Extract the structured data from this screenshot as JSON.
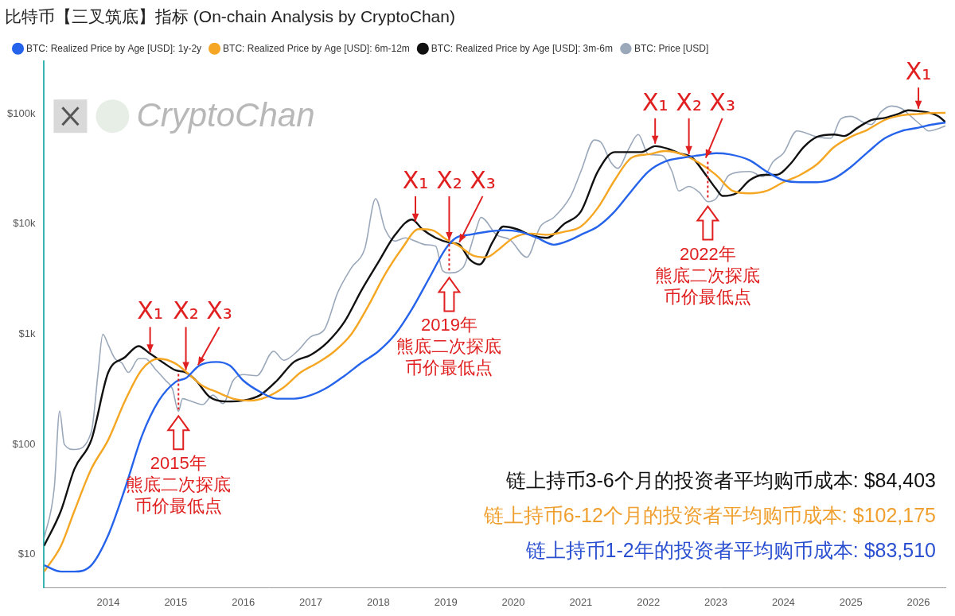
{
  "chart_data": {
    "type": "line",
    "title": "比特币【三叉筑底】指标 (On-chain Analysis by CryptoChan)",
    "log": "y",
    "grid": false,
    "legend": "top-left",
    "xlim": [
      2013.05,
      2026.4
    ],
    "xticks": [
      2014,
      2015,
      2016,
      2017,
      2018,
      2019,
      2020,
      2021,
      2022,
      2023,
      2024,
      2025,
      2026
    ],
    "ylim": [
      5,
      300000
    ],
    "yticks": [
      {
        "value": 10,
        "label": "$10"
      },
      {
        "value": 100,
        "label": "$100"
      },
      {
        "value": 1000,
        "label": "$1k"
      },
      {
        "value": 10000,
        "label": "$10k"
      },
      {
        "value": 100000,
        "label": "$100k"
      }
    ],
    "series": [
      {
        "name": "BTC: Realized Price by Age [USD]: 1y-2y",
        "color": "#2563eb",
        "x": [
          2013.05,
          2013.3,
          2013.5,
          2013.75,
          2014.0,
          2014.25,
          2014.5,
          2014.75,
          2015.0,
          2015.15,
          2015.35,
          2015.6,
          2015.8,
          2016.0,
          2016.25,
          2016.5,
          2016.75,
          2017.0,
          2017.25,
          2017.5,
          2017.75,
          2018.0,
          2018.25,
          2018.5,
          2018.75,
          2019.0,
          2019.15,
          2019.35,
          2019.6,
          2019.85,
          2020.1,
          2020.35,
          2020.6,
          2020.85,
          2021.0,
          2021.25,
          2021.5,
          2021.75,
          2022.0,
          2022.25,
          2022.5,
          2022.75,
          2023.0,
          2023.2,
          2023.5,
          2023.75,
          2024.0,
          2024.25,
          2024.5,
          2024.75,
          2025.0,
          2025.25,
          2025.5,
          2025.75,
          2026.0,
          2026.2,
          2026.4
        ],
        "values": [
          8,
          7,
          7,
          8,
          15,
          40,
          120,
          250,
          370,
          400,
          520,
          560,
          520,
          380,
          300,
          260,
          260,
          280,
          330,
          420,
          550,
          700,
          1000,
          1700,
          3200,
          6000,
          7500,
          8000,
          8500,
          8800,
          8500,
          7500,
          6500,
          7200,
          8000,
          9500,
          13000,
          20000,
          30000,
          37000,
          40000,
          42000,
          44000,
          43000,
          38000,
          30000,
          25000,
          24000,
          24000,
          26000,
          33000,
          45000,
          60000,
          70000,
          75000,
          80000,
          83510
        ]
      },
      {
        "name": "BTC: Realized Price by Age [USD]: 6m-12m",
        "color": "#f5a623",
        "x": [
          2013.05,
          2013.3,
          2013.5,
          2013.75,
          2014.0,
          2014.25,
          2014.5,
          2014.75,
          2015.0,
          2015.2,
          2015.4,
          2015.6,
          2015.85,
          2016.1,
          2016.35,
          2016.6,
          2016.85,
          2017.1,
          2017.35,
          2017.6,
          2017.85,
          2018.1,
          2018.35,
          2018.6,
          2018.8,
          2019.0,
          2019.2,
          2019.4,
          2019.6,
          2019.8,
          2020.0,
          2020.25,
          2020.5,
          2020.75,
          2021.0,
          2021.25,
          2021.5,
          2021.75,
          2022.0,
          2022.25,
          2022.5,
          2022.75,
          2023.0,
          2023.25,
          2023.5,
          2023.75,
          2024.0,
          2024.25,
          2024.5,
          2024.75,
          2025.0,
          2025.25,
          2025.5,
          2025.75,
          2026.0,
          2026.2,
          2026.4
        ],
        "values": [
          7,
          12,
          25,
          60,
          110,
          250,
          480,
          600,
          540,
          430,
          340,
          300,
          260,
          250,
          270,
          330,
          450,
          550,
          700,
          1000,
          1800,
          3500,
          6000,
          9000,
          8800,
          7300,
          6300,
          5200,
          5000,
          6000,
          7500,
          8200,
          8000,
          8500,
          9500,
          14000,
          25000,
          40000,
          43000,
          46000,
          43000,
          36000,
          28000,
          20000,
          19000,
          20000,
          24000,
          28000,
          35000,
          50000,
          62000,
          72000,
          88000,
          97000,
          100000,
          102000,
          102175
        ]
      },
      {
        "name": "BTC: Realized Price by Age [USD]: 3m-6m",
        "color": "#111111",
        "x": [
          2013.05,
          2013.3,
          2013.5,
          2013.75,
          2014.0,
          2014.25,
          2014.45,
          2014.6,
          2014.8,
          2015.0,
          2015.15,
          2015.3,
          2015.5,
          2015.75,
          2016.0,
          2016.25,
          2016.5,
          2016.75,
          2017.0,
          2017.25,
          2017.5,
          2017.75,
          2018.0,
          2018.25,
          2018.5,
          2018.65,
          2018.85,
          2019.05,
          2019.2,
          2019.35,
          2019.5,
          2019.7,
          2019.85,
          2020.05,
          2020.25,
          2020.5,
          2020.75,
          2021.0,
          2021.25,
          2021.5,
          2021.7,
          2021.9,
          2022.1,
          2022.3,
          2022.45,
          2022.65,
          2022.85,
          2023.0,
          2023.1,
          2023.3,
          2023.5,
          2023.7,
          2023.9,
          2024.1,
          2024.3,
          2024.5,
          2024.75,
          2024.9,
          2025.1,
          2025.3,
          2025.5,
          2025.7,
          2025.85,
          2026.0,
          2026.15,
          2026.3,
          2026.4
        ],
        "values": [
          12,
          25,
          60,
          110,
          450,
          620,
          780,
          680,
          560,
          470,
          450,
          380,
          270,
          245,
          250,
          280,
          380,
          560,
          650,
          850,
          1300,
          2500,
          4500,
          8000,
          11000,
          9000,
          7500,
          6800,
          6500,
          4800,
          4300,
          7000,
          9500,
          9000,
          8000,
          7500,
          10000,
          13000,
          30000,
          45000,
          45000,
          45000,
          51000,
          48000,
          44000,
          40000,
          28000,
          21000,
          18000,
          19000,
          25000,
          28000,
          28000,
          35000,
          50000,
          62000,
          65000,
          63000,
          75000,
          88000,
          92000,
          100000,
          108000,
          106000,
          103000,
          95000,
          84403
        ]
      },
      {
        "name": "BTC: Price [USD]",
        "color": "#9aa8ba",
        "x": [
          2013.05,
          2013.2,
          2013.28,
          2013.35,
          2013.5,
          2013.75,
          2013.85,
          2013.92,
          2014.0,
          2014.1,
          2014.2,
          2014.3,
          2014.45,
          2014.55,
          2014.7,
          2014.85,
          2014.95,
          2015.04,
          2015.1,
          2015.2,
          2015.4,
          2015.55,
          2015.7,
          2015.85,
          2016.0,
          2016.2,
          2016.45,
          2016.6,
          2016.8,
          2017.0,
          2017.2,
          2017.4,
          2017.6,
          2017.8,
          2017.96,
          2018.1,
          2018.25,
          2018.4,
          2018.55,
          2018.7,
          2018.85,
          2018.95,
          2019.05,
          2019.25,
          2019.45,
          2019.52,
          2019.75,
          2019.95,
          2020.2,
          2020.4,
          2020.6,
          2020.85,
          2021.0,
          2021.2,
          2021.3,
          2021.45,
          2021.55,
          2021.7,
          2021.85,
          2022.0,
          2022.2,
          2022.35,
          2022.45,
          2022.6,
          2022.75,
          2022.88,
          2023.0,
          2023.2,
          2023.5,
          2023.7,
          2023.85,
          2024.0,
          2024.2,
          2024.5,
          2024.7,
          2024.85,
          2025.0,
          2025.2,
          2025.3,
          2025.45,
          2025.6,
          2025.75,
          2025.85,
          2025.95,
          2026.05,
          2026.15,
          2026.25,
          2026.4
        ],
        "values": [
          14,
          40,
          200,
          100,
          90,
          130,
          450,
          1000,
          800,
          600,
          550,
          450,
          600,
          600,
          480,
          380,
          320,
          200,
          260,
          250,
          230,
          280,
          235,
          380,
          430,
          420,
          700,
          580,
          700,
          950,
          1100,
          2400,
          4000,
          6000,
          17000,
          9000,
          7000,
          7500,
          7000,
          6500,
          6300,
          3800,
          3600,
          4000,
          9000,
          11500,
          8000,
          7200,
          5000,
          9500,
          11500,
          18000,
          30000,
          58000,
          55000,
          36000,
          32000,
          47000,
          65000,
          43000,
          42000,
          30000,
          20000,
          22000,
          19500,
          16000,
          17000,
          28000,
          30000,
          27000,
          37000,
          44000,
          70000,
          62000,
          60000,
          90000,
          95000,
          83000,
          80000,
          105000,
          118000,
          112000,
          100000,
          88000,
          78000,
          70000,
          72000,
          78000
        ]
      }
    ],
    "watermark": "CryptoChan",
    "annotations": [
      {
        "markers": [
          {
            "text": "X₁",
            "x": 2014.62,
            "y": 650
          },
          {
            "text": "X₂",
            "x": 2015.15,
            "y": 450
          },
          {
            "text": "X₃",
            "x": 2015.33,
            "y": 500
          }
        ],
        "low": {
          "x": 2015.04,
          "y": 200,
          "lines": [
            "2015年",
            "熊底二次探底",
            "币价最低点"
          ]
        }
      },
      {
        "markers": [
          {
            "text": "X₁",
            "x": 2018.55,
            "y": 10000
          },
          {
            "text": "X₂",
            "x": 2019.05,
            "y": 6800
          },
          {
            "text": "X₃",
            "x": 2019.2,
            "y": 6500
          }
        ],
        "low": {
          "x": 2019.05,
          "y": 3600,
          "lines": [
            "2019年",
            "熊底二次探底",
            "币价最低点"
          ]
        }
      },
      {
        "markers": [
          {
            "text": "X₁",
            "x": 2022.1,
            "y": 51000
          },
          {
            "text": "X₂",
            "x": 2022.6,
            "y": 41000
          },
          {
            "text": "X₃",
            "x": 2022.85,
            "y": 38000
          }
        ],
        "low": {
          "x": 2022.88,
          "y": 16000,
          "lines": [
            "2022年",
            "熊底二次探底",
            "币价最低点"
          ]
        }
      },
      {
        "markers": [
          {
            "text": "X₁",
            "x": 2026.0,
            "y": 106000
          }
        ]
      }
    ],
    "notes": [
      {
        "text": "链上持币3-6个月的投资者平均购币成本: $84,403",
        "color": "#111111"
      },
      {
        "text": "链上持币6-12个月的投资者平均购币成本: $102,175",
        "color": "#f0a030"
      },
      {
        "text": "链上持币1-2年的投资者平均购币成本: $83,510",
        "color": "#2a4fd0"
      }
    ]
  }
}
